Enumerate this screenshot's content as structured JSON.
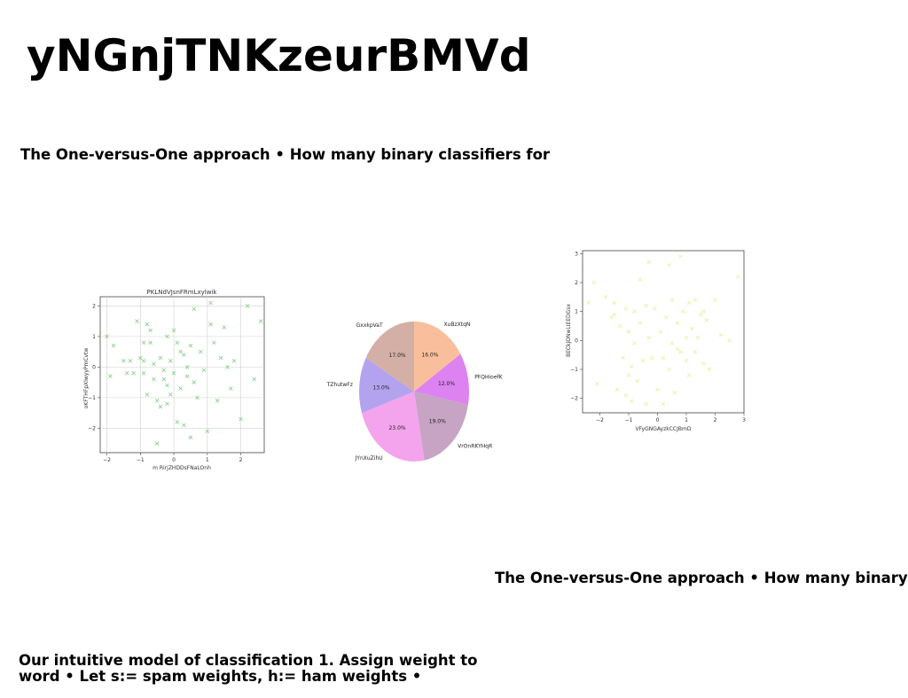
{
  "title": "yNGnjTNKzeurBMVd",
  "text_block_1": "The One-versus-One approach • How many binary classifiers for",
  "text_block_2": "The One-versus-One approach • How many binary",
  "text_block_3": "Our intuitive model of classification 1. Assign weight to word • Let s:= spam weights, h:= ham weights •",
  "chart_data": [
    {
      "type": "scatter",
      "title": "PKLNdVJsnFRmLxylwik",
      "xlabel": "m RirjZHDDsFNaLOnh",
      "ylabel": "oKFTHFpXIwyyPmCvtw",
      "xlim": [
        -2.2,
        2.7
      ],
      "ylim": [
        -2.8,
        2.3
      ],
      "xticks": [
        -2,
        -1,
        0,
        1,
        2
      ],
      "yticks": [
        -2,
        -1,
        0,
        1,
        2
      ],
      "grid": true,
      "marker": "x",
      "color": "#8fd18f",
      "points": [
        [
          -2.0,
          1.0
        ],
        [
          -1.9,
          -0.3
        ],
        [
          -1.8,
          0.7
        ],
        [
          -1.5,
          0.2
        ],
        [
          -1.4,
          -0.2
        ],
        [
          -1.3,
          0.2
        ],
        [
          -1.2,
          -0.2
        ],
        [
          -1.1,
          1.5
        ],
        [
          -1.0,
          0.3
        ],
        [
          -0.9,
          -0.2
        ],
        [
          -0.9,
          0.8
        ],
        [
          -0.9,
          0.2
        ],
        [
          -0.8,
          1.4
        ],
        [
          -0.8,
          -0.9
        ],
        [
          -0.7,
          1.2
        ],
        [
          -0.7,
          0.8
        ],
        [
          -0.6,
          -0.4
        ],
        [
          -0.6,
          0.1
        ],
        [
          -0.5,
          -1.1
        ],
        [
          -0.5,
          -2.5
        ],
        [
          -0.4,
          0.3
        ],
        [
          -0.4,
          -1.3
        ],
        [
          -0.3,
          -0.1
        ],
        [
          -0.3,
          -0.4
        ],
        [
          -0.2,
          1.0
        ],
        [
          -0.2,
          -0.6
        ],
        [
          -0.1,
          0.2
        ],
        [
          -0.1,
          -0.9
        ],
        [
          0.0,
          1.2
        ],
        [
          0.0,
          -0.2
        ],
        [
          0.1,
          0.8
        ],
        [
          0.1,
          -1.8
        ],
        [
          0.2,
          0.5
        ],
        [
          0.2,
          -0.7
        ],
        [
          0.3,
          0.4
        ],
        [
          0.3,
          -1.9
        ],
        [
          0.4,
          0.0
        ],
        [
          0.4,
          -0.3
        ],
        [
          0.5,
          0.7
        ],
        [
          0.5,
          -2.3
        ],
        [
          0.6,
          1.9
        ],
        [
          0.7,
          -1.0
        ],
        [
          0.8,
          0.5
        ],
        [
          0.9,
          -0.1
        ],
        [
          1.0,
          -2.1
        ],
        [
          1.1,
          2.1
        ],
        [
          1.1,
          1.4
        ],
        [
          1.2,
          0.8
        ],
        [
          1.3,
          -1.1
        ],
        [
          1.5,
          1.3
        ],
        [
          1.6,
          0.0
        ],
        [
          1.7,
          -0.7
        ],
        [
          1.8,
          0.2
        ],
        [
          2.0,
          -1.7
        ],
        [
          2.2,
          2.0
        ],
        [
          2.4,
          -0.4
        ],
        [
          2.6,
          1.5
        ],
        [
          -0.2,
          -1.2
        ],
        [
          0.6,
          -0.5
        ],
        [
          1.4,
          0.3
        ]
      ]
    },
    {
      "type": "pie",
      "slices": [
        {
          "label": "XuBzXtqN",
          "value": 16.0,
          "display": "16.0%",
          "color": "#f9bf9c"
        },
        {
          "label": "PFQHioefK",
          "value": 12.0,
          "display": "12.0%",
          "color": "#dc82f1"
        },
        {
          "label": "VrOnRKYHqR",
          "value": 19.0,
          "display": "19.0%",
          "color": "#c7a3c4"
        },
        {
          "label": "JYnXuZihU",
          "value": 23.0,
          "display": "23.0%",
          "color": "#f4a3ed"
        },
        {
          "label": "TZhutwFz",
          "value": 13.0,
          "display": "13.0%",
          "color": "#b3a3ee"
        },
        {
          "label": "GxxkpVaT",
          "value": 17.0,
          "display": "17.0%",
          "color": "#d3afa6"
        }
      ]
    },
    {
      "type": "scatter",
      "title": "",
      "xlabel": "VFyGNGAyzkCCJBmD",
      "ylabel": "BECkjONwLIEEDGsx",
      "xlim": [
        -2.6,
        3.0
      ],
      "ylim": [
        -2.5,
        3.1
      ],
      "xticks": [
        -2,
        -1,
        0,
        1,
        2,
        3
      ],
      "yticks": [
        -2,
        -1,
        0,
        1,
        2,
        3
      ],
      "grid": false,
      "marker": "x",
      "color": "#e8f2a6",
      "points": [
        [
          -2.4,
          1.3
        ],
        [
          -2.2,
          2.0
        ],
        [
          -2.1,
          -1.5
        ],
        [
          -1.8,
          1.5
        ],
        [
          -1.6,
          0.8
        ],
        [
          -1.5,
          1.3
        ],
        [
          -1.4,
          -1.7
        ],
        [
          -1.3,
          0.5
        ],
        [
          -1.2,
          -0.6
        ],
        [
          -1.1,
          1.1
        ],
        [
          -1.1,
          -1.9
        ],
        [
          -1.0,
          -1.2
        ],
        [
          -1.0,
          0.3
        ],
        [
          -0.9,
          -0.9
        ],
        [
          -0.8,
          -0.1
        ],
        [
          -0.8,
          1.0
        ],
        [
          -0.7,
          -1.4
        ],
        [
          -0.6,
          2.1
        ],
        [
          -0.6,
          0.6
        ],
        [
          -0.5,
          -0.7
        ],
        [
          -0.4,
          1.2
        ],
        [
          -0.4,
          -2.2
        ],
        [
          -0.3,
          2.7
        ],
        [
          -0.3,
          0.1
        ],
        [
          -0.2,
          -0.6
        ],
        [
          -0.1,
          1.1
        ],
        [
          0.0,
          -1.7
        ],
        [
          0.1,
          0.3
        ],
        [
          0.2,
          -2.2
        ],
        [
          0.2,
          -0.6
        ],
        [
          0.3,
          0.8
        ],
        [
          0.4,
          2.6
        ],
        [
          0.5,
          -0.1
        ],
        [
          0.5,
          1.4
        ],
        [
          0.6,
          -1.8
        ],
        [
          0.7,
          0.6
        ],
        [
          0.8,
          -0.4
        ],
        [
          0.8,
          2.9
        ],
        [
          0.9,
          1.0
        ],
        [
          1.0,
          -0.7
        ],
        [
          1.0,
          0.1
        ],
        [
          1.1,
          1.3
        ],
        [
          1.1,
          -1.2
        ],
        [
          1.2,
          0.4
        ],
        [
          1.3,
          1.4
        ],
        [
          1.3,
          -0.4
        ],
        [
          1.4,
          0.1
        ],
        [
          1.5,
          0.9
        ],
        [
          1.6,
          -0.8
        ],
        [
          1.7,
          0.7
        ],
        [
          1.8,
          -1.0
        ],
        [
          2.0,
          1.4
        ],
        [
          2.2,
          0.2
        ],
        [
          2.5,
          0.0
        ],
        [
          2.8,
          2.2
        ],
        [
          -0.9,
          -2.1
        ],
        [
          0.4,
          -1.0
        ],
        [
          1.6,
          1.0
        ],
        [
          -1.5,
          0.9
        ],
        [
          0.7,
          -0.3
        ]
      ]
    }
  ]
}
